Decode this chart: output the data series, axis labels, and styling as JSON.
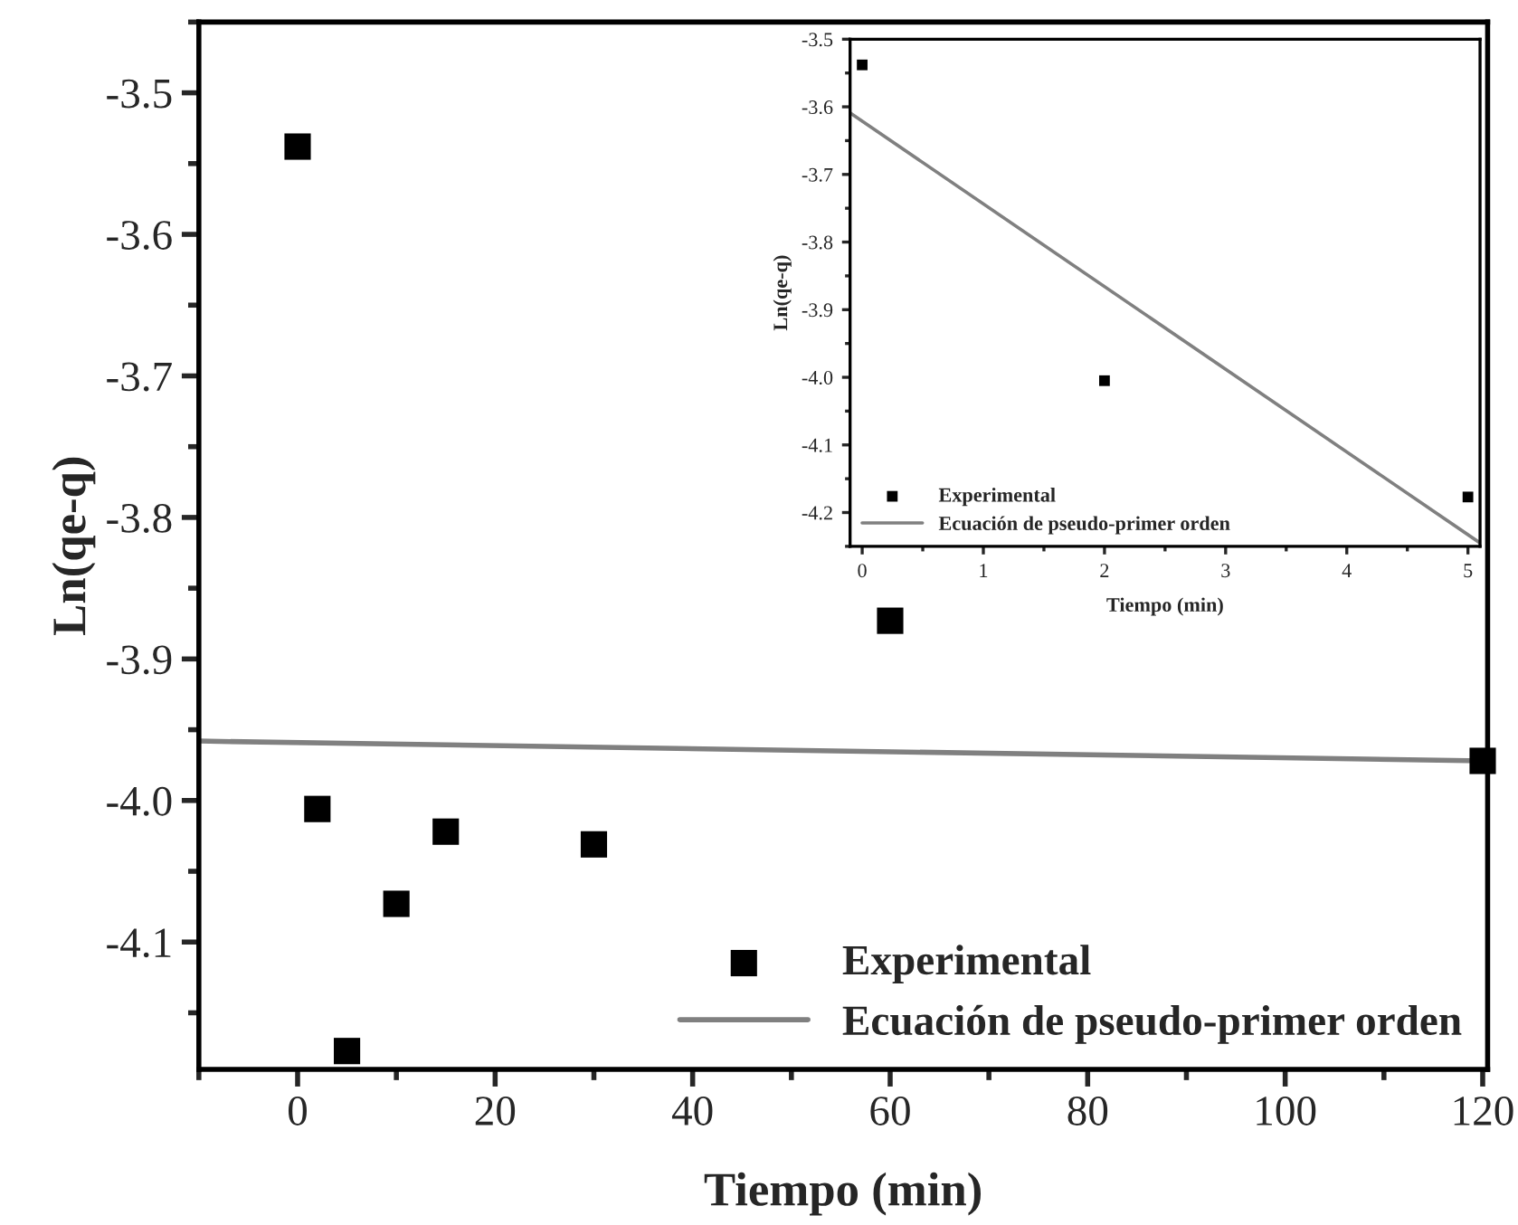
{
  "chart_data": [
    {
      "type": "scatter",
      "xlabel": "Tiempo (min)",
      "ylabel": "Ln(qe-q)",
      "xlim": [
        -10,
        120.5
      ],
      "ylim": [
        -4.19,
        -3.45
      ],
      "xticks": [
        0,
        20,
        40,
        60,
        80,
        100,
        120
      ],
      "yticks": [
        -4.1,
        {
          "value": -4.0,
          "label": "-4.0"
        },
        -3.9,
        -3.8,
        -3.7,
        -3.6,
        -3.5
      ],
      "legend": "bottom right",
      "grid": false,
      "series": [
        {
          "name": "Experimental",
          "marker": "square",
          "color": "#000000",
          "x": [
            0,
            2,
            5,
            10,
            15,
            30,
            60,
            120
          ],
          "values": [
            -3.538,
            -4.006,
            -4.177,
            -4.073,
            -4.022,
            -4.031,
            -3.873,
            -3.972
          ]
        },
        {
          "name": "Ecuación de pseudo-primer orden",
          "type": "line",
          "color": "#808080",
          "x": [
            -10,
            120
          ],
          "values": [
            -3.958,
            -3.972
          ]
        }
      ]
    },
    {
      "type": "scatter",
      "xlabel": "Tiempo (min)",
      "ylabel": "Ln(qe-q)",
      "xlim": [
        -0.1,
        5.1
      ],
      "ylim": [
        -4.25,
        -3.5
      ],
      "xticks": [
        0,
        1,
        2,
        3,
        4,
        5
      ],
      "yticks": [
        -4.2,
        -4.1,
        {
          "value": -4.0,
          "label": "-4.0"
        },
        -3.9,
        -3.8,
        -3.7,
        -3.6,
        -3.5
      ],
      "legend": "bottom left",
      "grid": false,
      "series": [
        {
          "name": "Experimental",
          "marker": "square",
          "color": "#000000",
          "x": [
            0,
            2,
            5
          ],
          "values": [
            -3.538,
            -4.005,
            -4.177
          ]
        },
        {
          "name": "Ecuación de pseudo-primer orden",
          "type": "line",
          "color": "#808080",
          "x": [
            -0.1,
            5.1
          ],
          "values": [
            -3.609,
            -4.245
          ]
        }
      ]
    }
  ]
}
